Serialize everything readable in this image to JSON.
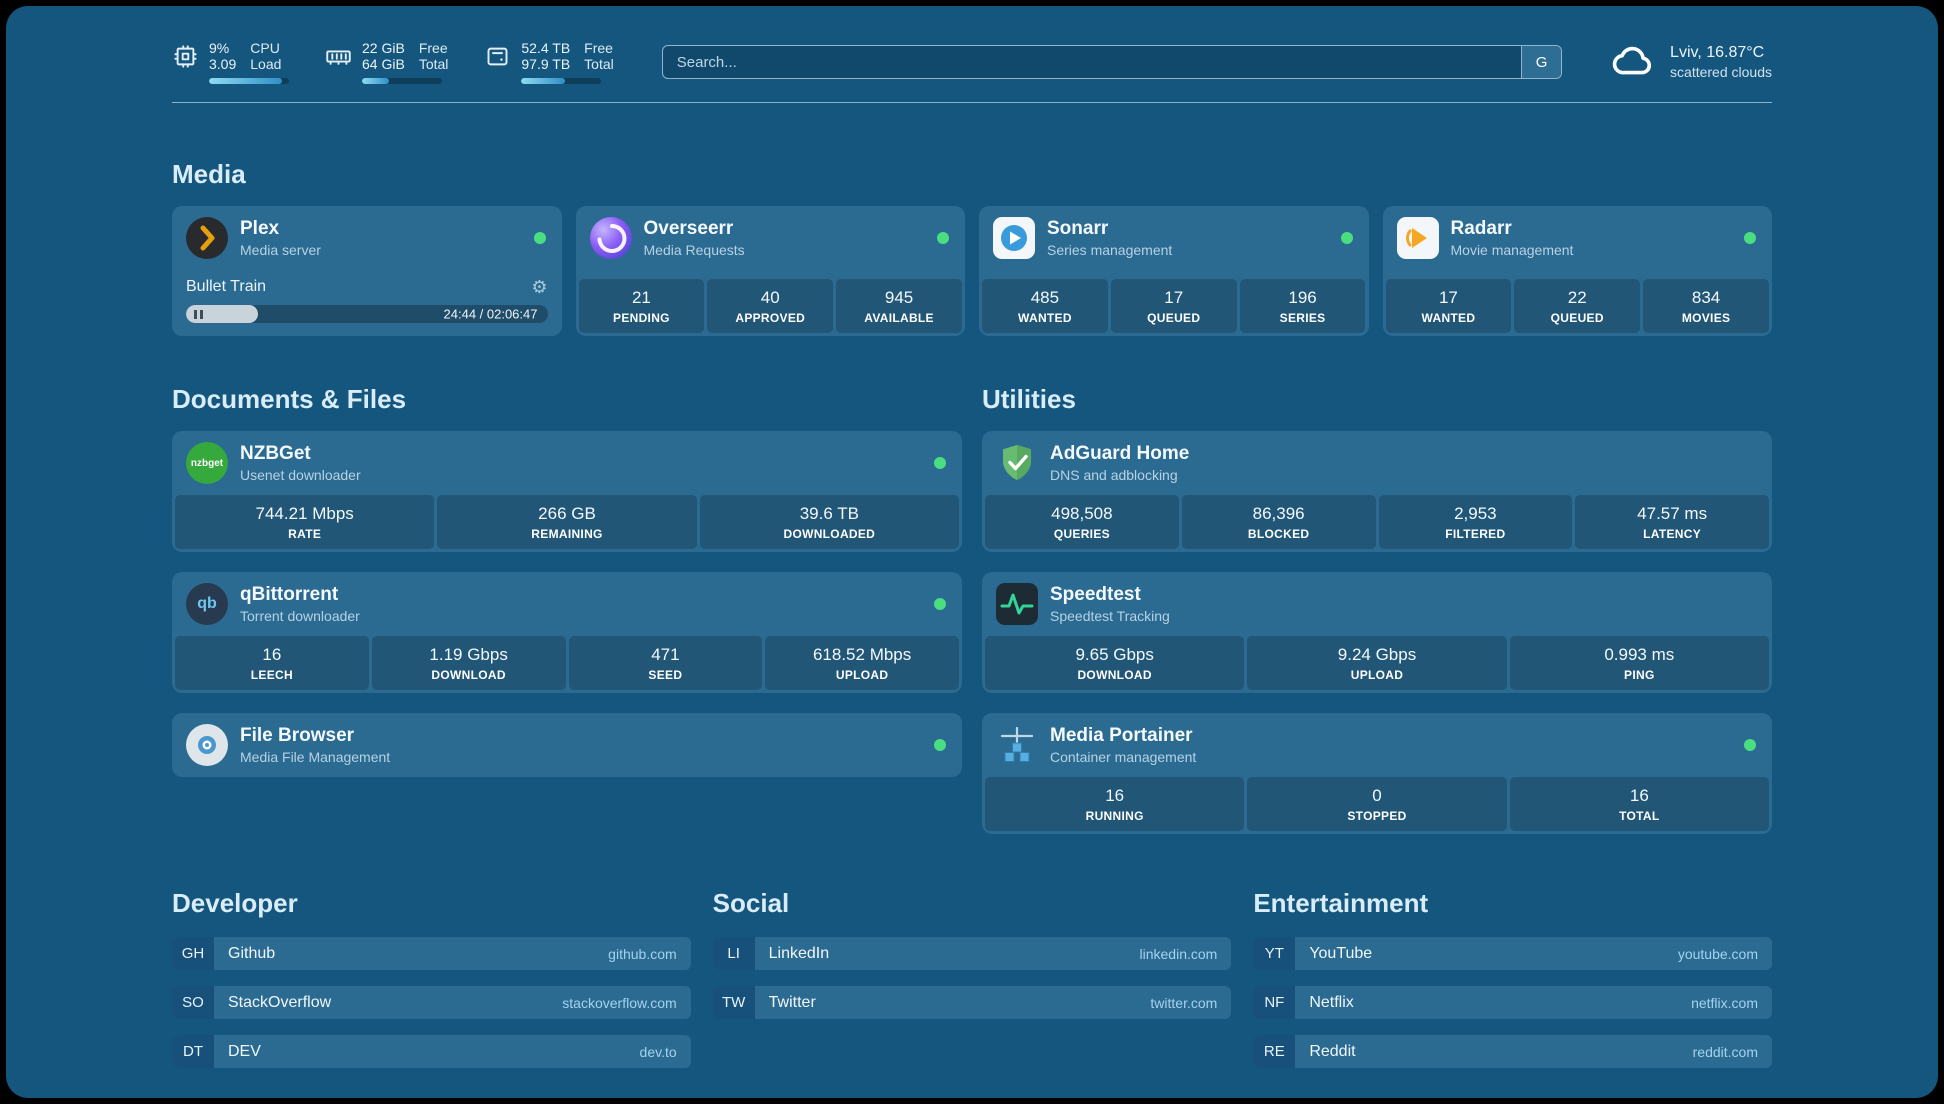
{
  "colors": {
    "background": "#15567e",
    "card": "#2b6a91",
    "status_online": "#4ade80",
    "section_title": "#d9edf9"
  },
  "header": {
    "system": [
      {
        "icon": "cpu-icon",
        "primary": "9%",
        "secondary": "3.09",
        "label_primary": "CPU",
        "label_secondary": "Load",
        "fill_pct": 91
      },
      {
        "icon": "ram-icon",
        "primary": "22 GiB",
        "secondary": "64 GiB",
        "label_primary": "Free",
        "label_secondary": "Total",
        "fill_pct": 34
      },
      {
        "icon": "disk-icon",
        "primary": "52.4 TB",
        "secondary": "97.9 TB",
        "label_primary": "Free",
        "label_secondary": "Total",
        "fill_pct": 54
      }
    ],
    "search": {
      "placeholder": "Search...",
      "button": "G"
    },
    "weather": {
      "icon": "cloud-icon",
      "location": "Lviv, 16.87°C",
      "condition": "scattered clouds"
    }
  },
  "sections": {
    "media": {
      "title": "Media",
      "plex": {
        "icon": "plex-icon",
        "name": "Plex",
        "desc": "Media server",
        "online": true,
        "now_playing": "Bullet Train",
        "time": "24:44 / 02:06:47",
        "progress_pct": 20
      },
      "apps": [
        {
          "icon": "overseerr-icon",
          "name": "Overseerr",
          "desc": "Media Requests",
          "online": true,
          "stats": [
            {
              "value": "21",
              "label": "PENDING"
            },
            {
              "value": "40",
              "label": "APPROVED"
            },
            {
              "value": "945",
              "label": "AVAILABLE"
            }
          ]
        },
        {
          "icon": "sonarr-icon",
          "name": "Sonarr",
          "desc": "Series management",
          "online": true,
          "stats": [
            {
              "value": "485",
              "label": "WANTED"
            },
            {
              "value": "17",
              "label": "QUEUED"
            },
            {
              "value": "196",
              "label": "SERIES"
            }
          ]
        },
        {
          "icon": "radarr-icon",
          "name": "Radarr",
          "desc": "Movie management",
          "online": true,
          "stats": [
            {
              "value": "17",
              "label": "WANTED"
            },
            {
              "value": "22",
              "label": "QUEUED"
            },
            {
              "value": "834",
              "label": "MOVIES"
            }
          ]
        }
      ]
    },
    "documents": {
      "title": "Documents & Files",
      "apps": [
        {
          "icon": "nzbget-icon",
          "name": "NZBGet",
          "desc": "Usenet downloader",
          "online": true,
          "stats": [
            {
              "value": "744.21 Mbps",
              "label": "RATE"
            },
            {
              "value": "266 GB",
              "label": "REMAINING"
            },
            {
              "value": "39.6 TB",
              "label": "DOWNLOADED"
            }
          ]
        },
        {
          "icon": "qbittorrent-icon",
          "name": "qBittorrent",
          "desc": "Torrent downloader",
          "online": true,
          "stats": [
            {
              "value": "16",
              "label": "LEECH"
            },
            {
              "value": "1.19 Gbps",
              "label": "DOWNLOAD"
            },
            {
              "value": "471",
              "label": "SEED"
            },
            {
              "value": "618.52 Mbps",
              "label": "UPLOAD"
            }
          ]
        },
        {
          "icon": "filebrowser-icon",
          "name": "File Browser",
          "desc": "Media File Management",
          "online": true,
          "stats": []
        }
      ]
    },
    "utilities": {
      "title": "Utilities",
      "apps": [
        {
          "icon": "adguard-icon",
          "name": "AdGuard Home",
          "desc": "DNS and adblocking",
          "stats": [
            {
              "value": "498,508",
              "label": "QUERIES"
            },
            {
              "value": "86,396",
              "label": "BLOCKED"
            },
            {
              "value": "2,953",
              "label": "FILTERED"
            },
            {
              "value": "47.57 ms",
              "label": "LATENCY"
            }
          ]
        },
        {
          "icon": "speedtest-icon",
          "name": "Speedtest",
          "desc": "Speedtest Tracking",
          "stats": [
            {
              "value": "9.65 Gbps",
              "label": "DOWNLOAD"
            },
            {
              "value": "9.24 Gbps",
              "label": "UPLOAD"
            },
            {
              "value": "0.993 ms",
              "label": "PING"
            }
          ]
        },
        {
          "icon": "portainer-icon",
          "name": "Media Portainer",
          "desc": "Container management",
          "online": true,
          "stats": [
            {
              "value": "16",
              "label": "RUNNING"
            },
            {
              "value": "0",
              "label": "STOPPED"
            },
            {
              "value": "16",
              "label": "TOTAL"
            }
          ]
        }
      ]
    }
  },
  "bookmarks": [
    {
      "title": "Developer",
      "items": [
        {
          "abbr": "GH",
          "name": "Github",
          "url": "github.com"
        },
        {
          "abbr": "SO",
          "name": "StackOverflow",
          "url": "stackoverflow.com"
        },
        {
          "abbr": "DT",
          "name": "DEV",
          "url": "dev.to"
        }
      ]
    },
    {
      "title": "Social",
      "items": [
        {
          "abbr": "LI",
          "name": "LinkedIn",
          "url": "linkedin.com"
        },
        {
          "abbr": "TW",
          "name": "Twitter",
          "url": "twitter.com"
        }
      ]
    },
    {
      "title": "Entertainment",
      "items": [
        {
          "abbr": "YT",
          "name": "YouTube",
          "url": "youtube.com"
        },
        {
          "abbr": "NF",
          "name": "Netflix",
          "url": "netflix.com"
        },
        {
          "abbr": "RE",
          "name": "Reddit",
          "url": "reddit.com"
        }
      ]
    }
  ]
}
